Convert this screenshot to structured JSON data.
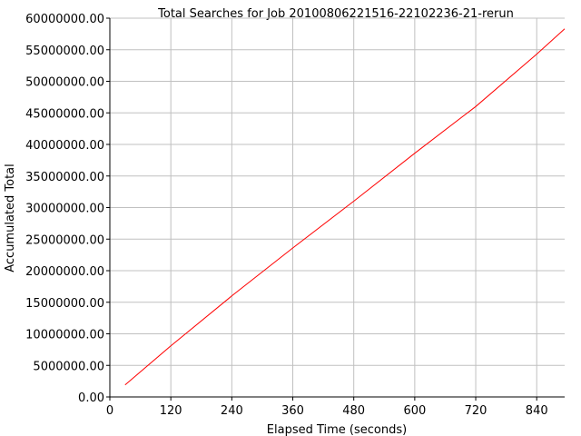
{
  "chart_data": {
    "type": "line",
    "title": "Total Searches for Job 20100806221516-22102236-21-rerun",
    "xlabel": "Elapsed Time (seconds)",
    "ylabel": "Accumulated Total",
    "xlim": [
      0,
      895
    ],
    "ylim": [
      0,
      60000000
    ],
    "x_ticks": [
      0,
      120,
      240,
      360,
      480,
      600,
      720,
      840
    ],
    "y_ticks": [
      0,
      5000000,
      10000000,
      15000000,
      20000000,
      25000000,
      30000000,
      35000000,
      40000000,
      45000000,
      50000000,
      55000000,
      60000000
    ],
    "x_tick_labels": [
      "0",
      "120",
      "240",
      "360",
      "480",
      "600",
      "720",
      "840"
    ],
    "y_tick_labels": [
      "0.00",
      "5000000.00",
      "10000000.00",
      "15000000.00",
      "20000000.00",
      "25000000.00",
      "30000000.00",
      "35000000.00",
      "40000000.00",
      "45000000.00",
      "50000000.00",
      "55000000.00",
      "60000000.00"
    ],
    "grid": true,
    "legend": "none",
    "series": [
      {
        "color": "#ff0000",
        "x": [
          30,
          120,
          240,
          360,
          480,
          600,
          720,
          840,
          895
        ],
        "y": [
          1900000,
          8100000,
          16000000,
          23600000,
          31000000,
          38600000,
          46000000,
          54300000,
          58300000
        ]
      }
    ]
  }
}
